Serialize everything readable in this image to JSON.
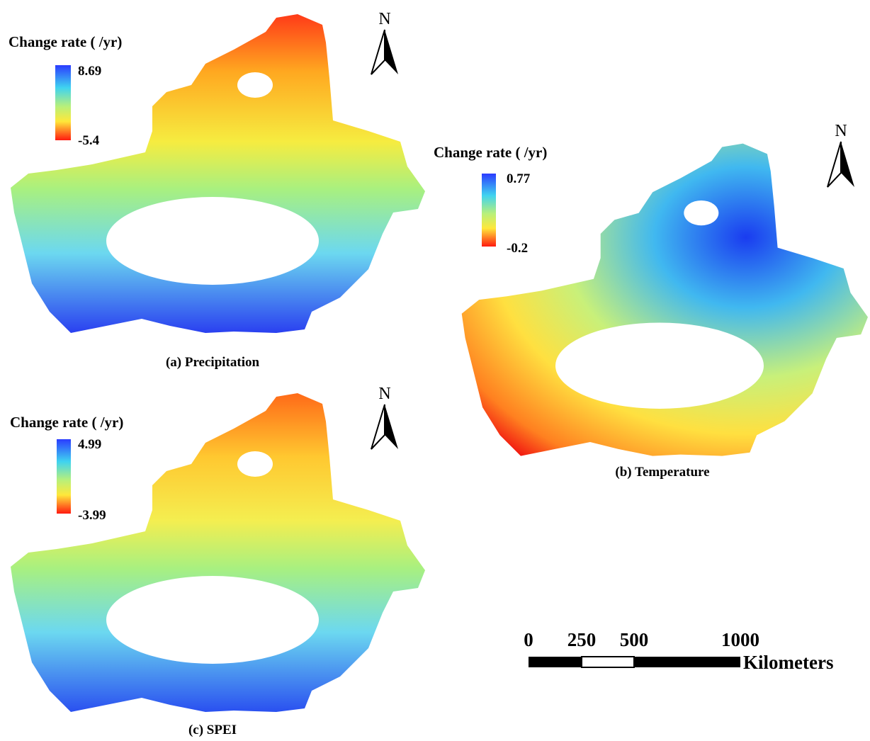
{
  "panels": [
    {
      "legend_title": "Change rate ( /yr)",
      "legend_max": "8.69",
      "legend_min": "-5.4",
      "north": "N",
      "caption": "(a) Precipitation"
    },
    {
      "legend_title": "Change rate ( /yr)",
      "legend_max": "0.77",
      "legend_min": "-0.2",
      "north": "N",
      "caption": "(b) Temperature"
    },
    {
      "legend_title": "Change rate ( /yr)",
      "legend_max": "4.99",
      "legend_min": "-3.99",
      "north": "N",
      "caption": "(c) SPEI"
    }
  ],
  "scale_bar": {
    "ticks": [
      "0",
      "250",
      "500",
      "1000"
    ],
    "unit": "Kilometers"
  }
}
